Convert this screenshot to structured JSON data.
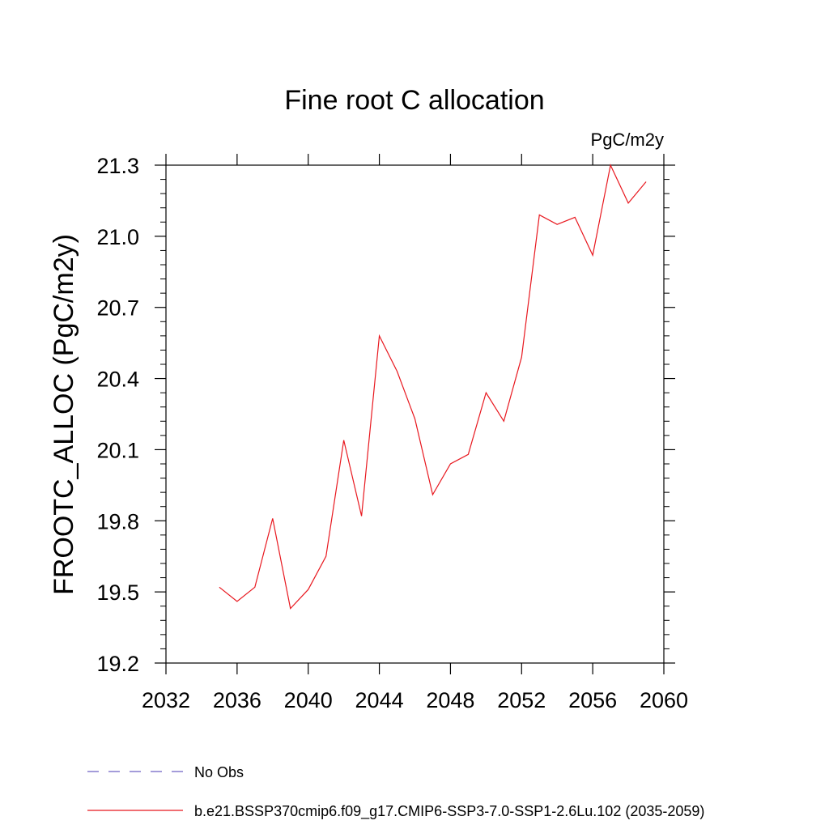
{
  "chart_data": {
    "type": "line",
    "title": "Fine root C allocation",
    "units": "PgC/m2y",
    "ylabel": "FROOTC_ALLOC  (PgC/m2y)",
    "xlabel": "",
    "xlim": [
      2032,
      2060
    ],
    "ylim": [
      19.2,
      21.3
    ],
    "x_ticks": [
      2032,
      2036,
      2040,
      2044,
      2048,
      2052,
      2056,
      2060
    ],
    "x_tick_labels": [
      "2032",
      "2036",
      "2040",
      "2044",
      "2048",
      "2052",
      "2056",
      "2060"
    ],
    "y_ticks": [
      19.2,
      19.5,
      19.8,
      20.1,
      20.4,
      20.7,
      21.0,
      21.3
    ],
    "y_tick_labels": [
      "19.2",
      "19.5",
      "19.8",
      "20.1",
      "20.4",
      "20.7",
      "21.0",
      "21.3"
    ],
    "grid": false,
    "legend_position": "bottom-left",
    "x": [
      2035,
      2036,
      2037,
      2038,
      2039,
      2040,
      2041,
      2042,
      2043,
      2044,
      2045,
      2046,
      2047,
      2048,
      2049,
      2050,
      2051,
      2052,
      2053,
      2054,
      2055,
      2056,
      2057,
      2058,
      2059
    ],
    "series": [
      {
        "name": "b.e21.BSSP370cmip6.f09_g17.CMIP6-SSP3-7.0-SSP1-2.6Lu.102 (2035-2059)",
        "color": "#e8181f",
        "style": "solid",
        "values": [
          19.52,
          19.46,
          19.52,
          19.81,
          19.43,
          19.51,
          19.65,
          20.14,
          19.82,
          20.58,
          20.43,
          20.23,
          19.91,
          20.04,
          20.08,
          20.34,
          20.22,
          20.49,
          21.09,
          21.05,
          21.08,
          20.92,
          21.3,
          21.14,
          21.23
        ]
      }
    ],
    "legend": [
      {
        "label": "No Obs",
        "color": "#6e60c4",
        "style": "dashed"
      },
      {
        "label": "b.e21.BSSP370cmip6.f09_g17.CMIP6-SSP3-7.0-SSP1-2.6Lu.102 (2035-2059)",
        "color": "#e8181f",
        "style": "solid"
      }
    ]
  }
}
